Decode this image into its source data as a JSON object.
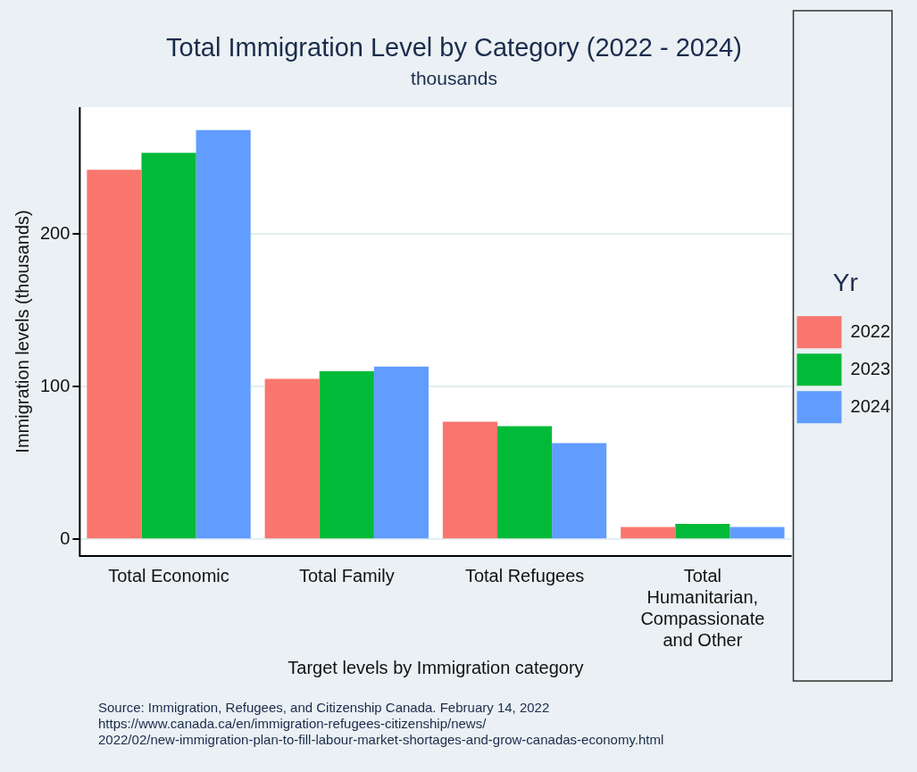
{
  "chart_data": {
    "type": "bar",
    "title": "Total Immigration Level by Category (2022 - 2024)",
    "subtitle": "thousands",
    "xlabel": "Target levels by Immigration category",
    "ylabel": "Immigration levels (thousands)",
    "legend_title": "Yr",
    "categories": [
      "Total Economic",
      "Total Family",
      "Total Refugees",
      "Total Humanitarian, Compassionate and Other"
    ],
    "series": [
      {
        "name": "2022",
        "color": "#f8766d",
        "values": [
          242,
          105,
          77,
          8
        ]
      },
      {
        "name": "2023",
        "color": "#00ba38",
        "values": [
          253,
          110,
          74,
          10
        ]
      },
      {
        "name": "2024",
        "color": "#619cff",
        "values": [
          268,
          113,
          63,
          8
        ]
      }
    ],
    "ylim": [
      -11,
      283
    ],
    "yticks": [
      0,
      100,
      200
    ],
    "grid": "y",
    "legend": "right",
    "annotations": [
      "Source: Immigration, Refugees, and Citizenship Canada. February 14, 2022",
      "https://www.canada.ca/en/immigration-refugees-citizenship/news/",
      "2022/02/new-immigration-plan-to-fill-labour-market-shortages-and-grow-canadas-economy.html"
    ]
  }
}
